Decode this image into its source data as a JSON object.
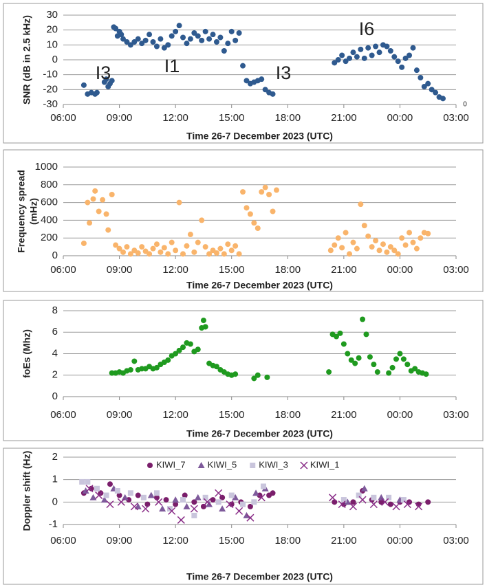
{
  "chart_data": [
    {
      "type": "scatter",
      "ylabel": "SNR (dB in 2.5 kHz)",
      "xlabel": "Time 26-7 December 2023 (UTC)",
      "grid": true,
      "xlim": [
        6,
        27
      ],
      "xticks": [
        {
          "value": 6,
          "label": "06:00"
        },
        {
          "value": 9,
          "label": "09:00"
        },
        {
          "value": 12,
          "label": "12:00"
        },
        {
          "value": 15,
          "label": "15:00"
        },
        {
          "value": 18,
          "label": "18:00"
        },
        {
          "value": 21,
          "label": "21:00"
        },
        {
          "value": 24,
          "label": "00:00"
        },
        {
          "value": 27,
          "label": "03:00"
        }
      ],
      "ylim": [
        -30,
        30
      ],
      "yticks": [
        -30,
        -20,
        -10,
        0,
        10,
        20,
        30
      ],
      "annotations": [
        "I3",
        "I1",
        "I3",
        "I6",
        "0"
      ],
      "series": [
        {
          "color": "#2f5a8f",
          "marker": "circle",
          "x": [
            7.1,
            7.3,
            7.5,
            7.7,
            7.8,
            8.2,
            8.3,
            8.4,
            8.5,
            8.6,
            8.7,
            8.8,
            8.9,
            9.0,
            9.1,
            9.2,
            9.4,
            9.6,
            9.8,
            10.0,
            10.2,
            10.4,
            10.6,
            10.8,
            11.0,
            11.2,
            11.4,
            11.6,
            11.8,
            12.0,
            12.2,
            12.4,
            12.6,
            12.8,
            13.0,
            13.2,
            13.4,
            13.6,
            13.8,
            14.0,
            14.2,
            14.4,
            14.6,
            14.8,
            15.0,
            15.2,
            15.4,
            15.6,
            15.8,
            16.0,
            16.2,
            16.4,
            16.6,
            16.8,
            17.0,
            17.2,
            20.5,
            20.7,
            20.9,
            21.1,
            21.3,
            21.5,
            21.7,
            21.9,
            22.1,
            22.3,
            22.5,
            22.7,
            22.9,
            23.1,
            23.3,
            23.5,
            23.7,
            23.9,
            24.1,
            24.3,
            24.5,
            24.7,
            24.9,
            25.1,
            25.3,
            25.5,
            25.7,
            25.9,
            26.1,
            26.3
          ],
          "values": [
            -17,
            -23,
            -22,
            -23,
            -22,
            -15,
            -13,
            -18,
            -16,
            -14,
            22,
            21,
            16,
            19,
            17,
            14,
            12,
            10,
            12,
            14,
            11,
            13,
            17,
            12,
            9,
            14,
            8,
            10,
            16,
            19,
            23,
            15,
            11,
            14,
            18,
            16,
            13,
            19,
            14,
            17,
            12,
            15,
            6,
            11,
            19,
            13,
            18,
            -4,
            -14,
            -16,
            -15,
            -14,
            -13,
            -20,
            -22,
            -23,
            -2,
            0,
            3,
            -1,
            1,
            5,
            2,
            7,
            1,
            8,
            3,
            9,
            5,
            10,
            9,
            6,
            2,
            -1,
            -5,
            1,
            3,
            8,
            -7,
            -12,
            -18,
            -16,
            -20,
            -22,
            -25,
            -26
          ]
        }
      ]
    },
    {
      "type": "scatter",
      "ylabel": [
        "Frequency spread",
        "(mHz)"
      ],
      "xlabel": "Time 26-7 December 2023 (UTC)",
      "grid": true,
      "xlim": [
        6,
        27
      ],
      "xticks": [
        {
          "value": 6,
          "label": "06:00"
        },
        {
          "value": 9,
          "label": "09:00"
        },
        {
          "value": 12,
          "label": "12:00"
        },
        {
          "value": 15,
          "label": "15:00"
        },
        {
          "value": 18,
          "label": "18:00"
        },
        {
          "value": 21,
          "label": "21:00"
        },
        {
          "value": 24,
          "label": "00:00"
        },
        {
          "value": 27,
          "label": "03:00"
        }
      ],
      "ylim": [
        0,
        1000
      ],
      "yticks": [
        0,
        200,
        400,
        600,
        800,
        1000
      ],
      "series": [
        {
          "color": "#f9b46b",
          "marker": "circle",
          "x": [
            7.1,
            7.3,
            7.4,
            7.6,
            7.7,
            7.9,
            8.1,
            8.3,
            8.4,
            8.6,
            8.8,
            9.0,
            9.2,
            9.4,
            9.6,
            9.8,
            10.0,
            10.2,
            10.4,
            10.6,
            10.8,
            11.0,
            11.2,
            11.4,
            11.6,
            11.8,
            12.0,
            12.2,
            12.4,
            12.6,
            12.8,
            13.0,
            13.2,
            13.4,
            13.6,
            13.8,
            14.0,
            14.2,
            14.4,
            14.6,
            14.8,
            15.0,
            15.2,
            15.4,
            15.6,
            15.8,
            16.0,
            16.2,
            16.4,
            16.6,
            16.8,
            17.0,
            17.2,
            17.4,
            20.3,
            20.5,
            20.7,
            20.9,
            21.1,
            21.3,
            21.5,
            21.7,
            21.9,
            22.1,
            22.3,
            22.5,
            22.7,
            22.9,
            23.1,
            23.3,
            23.5,
            23.7,
            23.9,
            24.1,
            24.3,
            24.5,
            24.7,
            24.9,
            25.1,
            25.3,
            25.5
          ],
          "values": [
            140,
            600,
            370,
            640,
            730,
            500,
            630,
            470,
            290,
            690,
            120,
            80,
            40,
            100,
            20,
            60,
            30,
            100,
            50,
            20,
            80,
            130,
            40,
            90,
            20,
            150,
            60,
            600,
            20,
            110,
            240,
            40,
            150,
            400,
            100,
            20,
            60,
            30,
            80,
            20,
            130,
            60,
            110,
            20,
            720,
            540,
            470,
            370,
            310,
            720,
            770,
            690,
            500,
            740,
            60,
            120,
            200,
            90,
            260,
            20,
            150,
            80,
            580,
            340,
            220,
            100,
            170,
            60,
            130,
            40,
            100,
            60,
            20,
            200,
            120,
            260,
            150,
            80,
            200,
            260,
            250
          ]
        }
      ]
    },
    {
      "type": "scatter",
      "ylabel": "foEs (Mhz)",
      "xlabel": "Time 26-7 December 2023 (UTC)",
      "grid": true,
      "xlim": [
        6,
        27
      ],
      "xticks": [
        {
          "value": 6,
          "label": "06:00"
        },
        {
          "value": 9,
          "label": "09:00"
        },
        {
          "value": 12,
          "label": "12:00"
        },
        {
          "value": 15,
          "label": "15:00"
        },
        {
          "value": 18,
          "label": "18:00"
        },
        {
          "value": 21,
          "label": "21:00"
        },
        {
          "value": 24,
          "label": "00:00"
        },
        {
          "value": 27,
          "label": "03:00"
        }
      ],
      "ylim": [
        0,
        8
      ],
      "yticks": [
        0,
        2,
        4,
        6,
        8
      ],
      "series": [
        {
          "color": "#1f9a1f",
          "marker": "circle",
          "x": [
            8.6,
            8.8,
            9.0,
            9.2,
            9.4,
            9.6,
            9.8,
            10.0,
            10.2,
            10.4,
            10.6,
            10.8,
            11.0,
            11.2,
            11.4,
            11.6,
            11.8,
            12.0,
            12.2,
            12.4,
            12.6,
            12.8,
            13.0,
            13.2,
            13.4,
            13.5,
            13.6,
            13.8,
            14.0,
            14.2,
            14.4,
            14.6,
            14.8,
            15.0,
            15.2,
            16.2,
            16.4,
            16.9,
            20.2,
            20.4,
            20.6,
            20.8,
            21.0,
            21.2,
            21.4,
            21.6,
            21.8,
            22.0,
            22.2,
            22.4,
            22.6,
            22.8,
            23.4,
            23.6,
            23.8,
            24.0,
            24.2,
            24.4,
            24.6,
            24.8,
            25.0,
            25.2,
            25.4
          ],
          "values": [
            2.2,
            2.2,
            2.3,
            2.2,
            2.4,
            2.5,
            3.3,
            2.5,
            2.6,
            2.6,
            2.8,
            2.6,
            2.7,
            3.0,
            3.2,
            3.4,
            3.8,
            4.0,
            4.3,
            4.6,
            5.0,
            4.9,
            4.2,
            4.4,
            6.4,
            7.1,
            6.5,
            3.1,
            2.9,
            2.8,
            2.5,
            2.3,
            2.1,
            2.0,
            2.1,
            1.7,
            2.0,
            1.8,
            2.3,
            5.8,
            5.6,
            5.9,
            4.9,
            4.0,
            3.4,
            3.1,
            3.6,
            7.2,
            5.8,
            3.7,
            3.0,
            2.3,
            2.2,
            2.7,
            3.5,
            4.0,
            3.5,
            3.0,
            2.4,
            2.6,
            2.3,
            2.2,
            2.1
          ]
        }
      ]
    },
    {
      "type": "scatter",
      "ylabel": "Doppler shift (Hz)",
      "xlabel": "Time 26-7 December 2023 (UTC)",
      "grid": true,
      "legend": "top",
      "xlim": [
        6,
        27
      ],
      "xticks": [
        {
          "value": 6,
          "label": "06:00"
        },
        {
          "value": 9,
          "label": "09:00"
        },
        {
          "value": 12,
          "label": "12:00"
        },
        {
          "value": 15,
          "label": "15:00"
        },
        {
          "value": 18,
          "label": "18:00"
        },
        {
          "value": 21,
          "label": "21:00"
        },
        {
          "value": 24,
          "label": "00:00"
        },
        {
          "value": 27,
          "label": "03:00"
        }
      ],
      "ylim": [
        -1,
        2
      ],
      "yticks": [
        -1,
        0,
        1,
        2
      ],
      "series": [
        {
          "name": "KIWI_7",
          "color": "#7a1e6b",
          "marker": "circle",
          "x": [
            7.1,
            7.5,
            8.0,
            8.5,
            9.0,
            9.5,
            10.0,
            10.5,
            11.0,
            11.5,
            12.0,
            12.5,
            13.0,
            13.5,
            14.0,
            14.5,
            15.0,
            15.5,
            16.0,
            16.5,
            17.0,
            17.2,
            20.5,
            21.0,
            21.5,
            22.0,
            22.5,
            23.0,
            23.5,
            24.0,
            24.5,
            25.0,
            25.5
          ],
          "values": [
            0.4,
            0.6,
            0.4,
            0.8,
            0.3,
            0.1,
            0.3,
            -0.1,
            0.2,
            0.1,
            -0.1,
            0.3,
            0.0,
            -0.2,
            0.1,
            0.2,
            -0.1,
            0.0,
            -0.2,
            0.3,
            0.3,
            0.4,
            0.0,
            -0.1,
            0.0,
            0.5,
            0.1,
            0.0,
            -0.1,
            0.0,
            0.0,
            -0.1,
            0.0
          ]
        },
        {
          "name": "KIWI_5",
          "color": "#7e5a9b",
          "marker": "triangle",
          "x": [
            7.2,
            7.6,
            8.2,
            8.7,
            9.3,
            10.0,
            10.7,
            11.3,
            12.0,
            12.6,
            13.2,
            13.8,
            14.5,
            15.2,
            15.8,
            16.3,
            16.8,
            21.2,
            22.1,
            23.0,
            24.0
          ],
          "values": [
            0.5,
            0.2,
            0.1,
            0.6,
            0.2,
            -0.2,
            0.3,
            -0.3,
            0.1,
            -0.2,
            0.2,
            -0.1,
            -0.3,
            0.2,
            -0.6,
            0.4,
            0.6,
            0.0,
            0.6,
            0.2,
            0.1
          ]
        },
        {
          "name": "KIWI_3",
          "color": "#c9c5dc",
          "marker": "square",
          "x": [
            7.0,
            7.3,
            7.8,
            8.3,
            8.9,
            9.6,
            10.3,
            11.0,
            11.7,
            12.4,
            13.0,
            13.6,
            14.3,
            15.0,
            15.6,
            16.2,
            16.7,
            21.0,
            21.8,
            22.6,
            23.4,
            24.2
          ],
          "values": [
            0.9,
            0.9,
            0.6,
            0.3,
            0.5,
            0.4,
            0.2,
            0.4,
            -0.3,
            0.1,
            -0.6,
            0.2,
            0.0,
            0.3,
            -0.1,
            0.0,
            0.7,
            0.1,
            0.3,
            0.2,
            0.2,
            0.1
          ]
        },
        {
          "name": "KIWI_1",
          "color": "#892c87",
          "marker": "x",
          "x": [
            7.4,
            7.9,
            8.5,
            9.1,
            9.8,
            10.4,
            11.1,
            11.8,
            12.3,
            13.0,
            13.7,
            14.3,
            14.9,
            15.4,
            16.0,
            16.6,
            20.4,
            20.9,
            21.5,
            22.0,
            22.6,
            23.2,
            23.8,
            24.4,
            25.0
          ],
          "values": [
            0.6,
            0.3,
            -0.1,
            0.0,
            -0.2,
            -0.3,
            0.0,
            -0.4,
            -0.8,
            -0.3,
            0.0,
            0.4,
            -0.1,
            -0.4,
            -0.7,
            0.2,
            0.2,
            -0.1,
            -0.2,
            0.1,
            -0.1,
            0.0,
            -0.2,
            -0.1,
            -0.2
          ]
        }
      ]
    }
  ]
}
